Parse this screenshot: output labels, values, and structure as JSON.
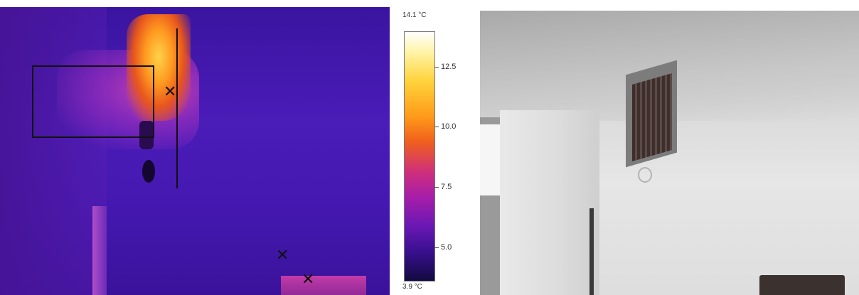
{
  "thermal_image": {
    "markers": [
      {
        "name": "marker-sp1",
        "label": ""
      },
      {
        "name": "marker-sp2",
        "label": ""
      },
      {
        "name": "marker-sp3",
        "label": ""
      }
    ]
  },
  "color_scale": {
    "max_label": "14.1 °C",
    "min_label": "3.9 °C",
    "ticks": [
      "12.5",
      "10.0",
      "7.5",
      "5.0"
    ],
    "palette_colors": [
      "#ffffff",
      "#ffd23a",
      "#f0601c",
      "#a81ea8",
      "#3a1090",
      "#120a40"
    ]
  }
}
